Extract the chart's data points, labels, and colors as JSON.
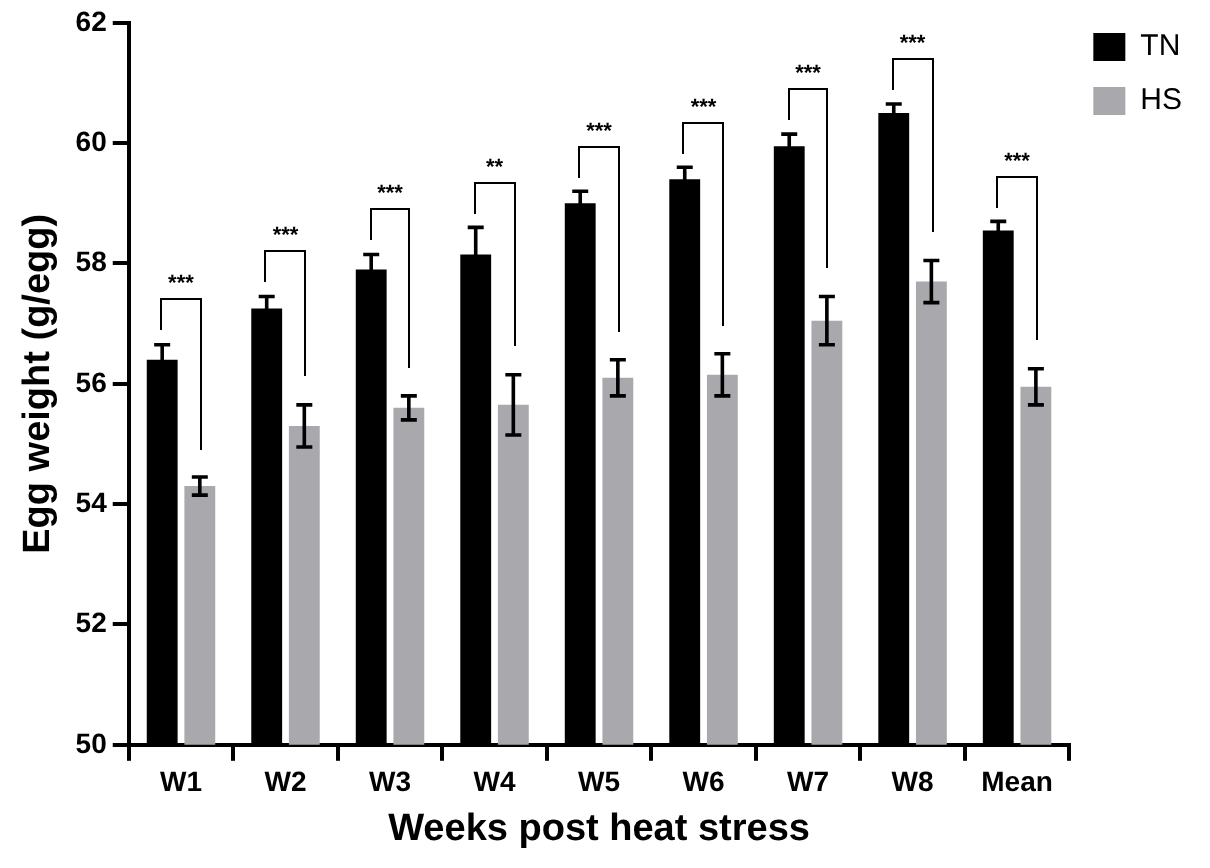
{
  "chart_data": {
    "type": "bar",
    "xlabel": "Weeks post heat stress",
    "ylabel": "Egg weight (g/egg)",
    "categories": [
      "W1",
      "W2",
      "W3",
      "W4",
      "W5",
      "W6",
      "W7",
      "W8",
      "Mean"
    ],
    "series": [
      {
        "name": "TN",
        "color": "#000000",
        "values": [
          56.4,
          57.25,
          57.9,
          58.15,
          59.0,
          59.4,
          59.95,
          60.5,
          58.55
        ],
        "errors": [
          0.25,
          0.2,
          0.25,
          0.45,
          0.2,
          0.2,
          0.2,
          0.15,
          0.15
        ]
      },
      {
        "name": "HS",
        "color": "#a9a9ad",
        "values": [
          54.3,
          55.3,
          55.6,
          55.65,
          56.1,
          56.15,
          57.05,
          57.7,
          55.95
        ],
        "errors": [
          0.15,
          0.35,
          0.2,
          0.5,
          0.3,
          0.35,
          0.4,
          0.35,
          0.3
        ]
      }
    ],
    "ylim": [
      50,
      62
    ],
    "yticks": [
      50,
      52,
      54,
      56,
      58,
      60,
      62
    ],
    "grid": false,
    "legend": "top right",
    "annotations": [
      "***",
      "***",
      "***",
      "**",
      "***",
      "***",
      "***",
      "***",
      "***"
    ]
  }
}
